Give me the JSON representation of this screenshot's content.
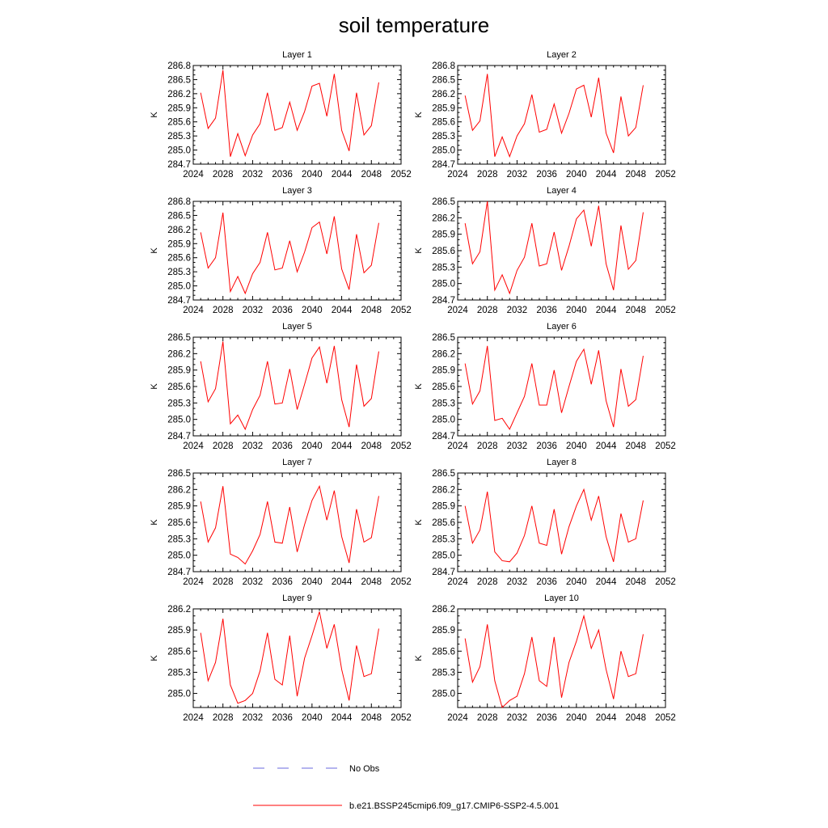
{
  "title": "soil temperature",
  "legend": {
    "placement": "bottom-center",
    "entries": [
      {
        "label": "No Obs",
        "color": "#6a6adf",
        "style": "dashed"
      },
      {
        "label": "b.e21.BSSP245cmip6.f09_g17.CMIP6-SSP2-4.5.001",
        "color": "#ff0000",
        "style": "solid"
      }
    ]
  },
  "chart_data": [
    {
      "type": "line",
      "title": "Layer 1",
      "ylabel": "K",
      "xlim": [
        2024,
        2052
      ],
      "ylim": [
        284.7,
        286.8
      ],
      "xticks": [
        "2024",
        "2028",
        "2032",
        "2036",
        "2040",
        "2044",
        "2048",
        "2052"
      ],
      "yticks": [
        "284.7",
        "285.0",
        "285.3",
        "285.6",
        "285.9",
        "286.2",
        "286.5",
        "286.8"
      ],
      "x": [
        2025,
        2026,
        2027,
        2028,
        2029,
        2030,
        2031,
        2032,
        2033,
        2034,
        2035,
        2036,
        2037,
        2038,
        2039,
        2040,
        2041,
        2042,
        2043,
        2044,
        2045,
        2046,
        2047,
        2048,
        2049
      ],
      "series": [
        {
          "name": "b.e21.BSSP245cmip6.f09_g17.CMIP6-SSP2-4.5.001",
          "color": "#ff0000",
          "values": [
            286.22,
            285.46,
            285.68,
            286.7,
            284.86,
            285.35,
            284.88,
            285.32,
            285.56,
            286.22,
            285.42,
            285.48,
            286.02,
            285.42,
            285.82,
            286.36,
            286.42,
            285.72,
            286.62,
            285.42,
            284.98,
            286.22,
            285.32,
            285.52,
            286.44
          ]
        }
      ]
    },
    {
      "type": "line",
      "title": "Layer 2",
      "ylabel": "K",
      "xlim": [
        2024,
        2052
      ],
      "ylim": [
        284.7,
        286.8
      ],
      "xticks": [
        "2024",
        "2028",
        "2032",
        "2036",
        "2040",
        "2044",
        "2048",
        "2052"
      ],
      "yticks": [
        "284.7",
        "285.0",
        "285.3",
        "285.6",
        "285.9",
        "286.2",
        "286.5",
        "286.8"
      ],
      "x": [
        2025,
        2026,
        2027,
        2028,
        2029,
        2030,
        2031,
        2032,
        2033,
        2034,
        2035,
        2036,
        2037,
        2038,
        2039,
        2040,
        2041,
        2042,
        2043,
        2044,
        2045,
        2046,
        2047,
        2048,
        2049
      ],
      "series": [
        {
          "name": "b.e21.BSSP245cmip6.f09_g17.CMIP6-SSP2-4.5.001",
          "color": "#ff0000",
          "values": [
            286.16,
            285.42,
            285.62,
            286.62,
            284.86,
            285.28,
            284.86,
            285.3,
            285.56,
            286.18,
            285.38,
            285.44,
            285.98,
            285.36,
            285.78,
            286.3,
            286.38,
            285.7,
            286.54,
            285.36,
            284.94,
            286.14,
            285.3,
            285.48,
            286.38
          ]
        }
      ]
    },
    {
      "type": "line",
      "title": "Layer 3",
      "ylabel": "K",
      "xlim": [
        2024,
        2052
      ],
      "ylim": [
        284.7,
        286.8
      ],
      "xticks": [
        "2024",
        "2028",
        "2032",
        "2036",
        "2040",
        "2044",
        "2048",
        "2052"
      ],
      "yticks": [
        "284.7",
        "285.0",
        "285.3",
        "285.6",
        "285.9",
        "286.2",
        "286.5",
        "286.8"
      ],
      "x": [
        2025,
        2026,
        2027,
        2028,
        2029,
        2030,
        2031,
        2032,
        2033,
        2034,
        2035,
        2036,
        2037,
        2038,
        2039,
        2040,
        2041,
        2042,
        2043,
        2044,
        2045,
        2046,
        2047,
        2048,
        2049
      ],
      "series": [
        {
          "name": "b.e21.BSSP245cmip6.f09_g17.CMIP6-SSP2-4.5.001",
          "color": "#ff0000",
          "values": [
            286.14,
            285.38,
            285.6,
            286.56,
            284.88,
            285.2,
            284.84,
            285.26,
            285.5,
            286.14,
            285.34,
            285.38,
            285.96,
            285.3,
            285.72,
            286.24,
            286.36,
            285.68,
            286.48,
            285.36,
            284.92,
            286.1,
            285.28,
            285.44,
            286.34
          ]
        }
      ]
    },
    {
      "type": "line",
      "title": "Layer 4",
      "ylabel": "K",
      "xlim": [
        2024,
        2052
      ],
      "ylim": [
        284.7,
        286.5
      ],
      "xticks": [
        "2024",
        "2028",
        "2032",
        "2036",
        "2040",
        "2044",
        "2048",
        "2052"
      ],
      "yticks": [
        "284.7",
        "285.0",
        "285.3",
        "285.6",
        "285.9",
        "286.2",
        "286.5"
      ],
      "x": [
        2025,
        2026,
        2027,
        2028,
        2029,
        2030,
        2031,
        2032,
        2033,
        2034,
        2035,
        2036,
        2037,
        2038,
        2039,
        2040,
        2041,
        2042,
        2043,
        2044,
        2045,
        2046,
        2047,
        2048,
        2049
      ],
      "series": [
        {
          "name": "b.e21.BSSP245cmip6.f09_g17.CMIP6-SSP2-4.5.001",
          "color": "#ff0000",
          "values": [
            286.1,
            285.36,
            285.58,
            286.5,
            284.88,
            285.16,
            284.82,
            285.24,
            285.48,
            286.1,
            285.32,
            285.36,
            285.94,
            285.24,
            285.68,
            286.18,
            286.34,
            285.68,
            286.42,
            285.36,
            284.88,
            286.06,
            285.26,
            285.42,
            286.3
          ]
        }
      ]
    },
    {
      "type": "line",
      "title": "Layer 5",
      "ylabel": "K",
      "xlim": [
        2024,
        2052
      ],
      "ylim": [
        284.7,
        286.5
      ],
      "xticks": [
        "2024",
        "2028",
        "2032",
        "2036",
        "2040",
        "2044",
        "2048",
        "2052"
      ],
      "yticks": [
        "284.7",
        "285.0",
        "285.3",
        "285.6",
        "285.9",
        "286.2",
        "286.5"
      ],
      "x": [
        2025,
        2026,
        2027,
        2028,
        2029,
        2030,
        2031,
        2032,
        2033,
        2034,
        2035,
        2036,
        2037,
        2038,
        2039,
        2040,
        2041,
        2042,
        2043,
        2044,
        2045,
        2046,
        2047,
        2048,
        2049
      ],
      "series": [
        {
          "name": "b.e21.BSSP245cmip6.f09_g17.CMIP6-SSP2-4.5.001",
          "color": "#ff0000",
          "values": [
            286.06,
            285.32,
            285.56,
            286.42,
            284.92,
            285.08,
            284.82,
            285.18,
            285.44,
            286.06,
            285.28,
            285.3,
            285.92,
            285.18,
            285.64,
            286.12,
            286.32,
            285.66,
            286.34,
            285.36,
            284.86,
            286.0,
            285.24,
            285.38,
            286.24
          ]
        }
      ]
    },
    {
      "type": "line",
      "title": "Layer 6",
      "ylabel": "K",
      "xlim": [
        2024,
        2052
      ],
      "ylim": [
        284.7,
        286.5
      ],
      "xticks": [
        "2024",
        "2028",
        "2032",
        "2036",
        "2040",
        "2044",
        "2048",
        "2052"
      ],
      "yticks": [
        "284.7",
        "285.0",
        "285.3",
        "285.6",
        "285.9",
        "286.2",
        "286.5"
      ],
      "x": [
        2025,
        2026,
        2027,
        2028,
        2029,
        2030,
        2031,
        2032,
        2033,
        2034,
        2035,
        2036,
        2037,
        2038,
        2039,
        2040,
        2041,
        2042,
        2043,
        2044,
        2045,
        2046,
        2047,
        2048,
        2049
      ],
      "series": [
        {
          "name": "b.e21.BSSP245cmip6.f09_g17.CMIP6-SSP2-4.5.001",
          "color": "#ff0000",
          "values": [
            286.02,
            285.28,
            285.52,
            286.34,
            284.98,
            285.02,
            284.82,
            285.12,
            285.42,
            286.02,
            285.26,
            285.26,
            285.9,
            285.12,
            285.6,
            286.06,
            286.28,
            285.64,
            286.26,
            285.34,
            284.86,
            285.92,
            285.24,
            285.36,
            286.16
          ]
        }
      ]
    },
    {
      "type": "line",
      "title": "Layer 7",
      "ylabel": "K",
      "xlim": [
        2024,
        2052
      ],
      "ylim": [
        284.7,
        286.5
      ],
      "xticks": [
        "2024",
        "2028",
        "2032",
        "2036",
        "2040",
        "2044",
        "2048",
        "2052"
      ],
      "yticks": [
        "284.7",
        "285.0",
        "285.3",
        "285.6",
        "285.9",
        "286.2",
        "286.5"
      ],
      "x": [
        2025,
        2026,
        2027,
        2028,
        2029,
        2030,
        2031,
        2032,
        2033,
        2034,
        2035,
        2036,
        2037,
        2038,
        2039,
        2040,
        2041,
        2042,
        2043,
        2044,
        2045,
        2046,
        2047,
        2048,
        2049
      ],
      "series": [
        {
          "name": "b.e21.BSSP245cmip6.f09_g17.CMIP6-SSP2-4.5.001",
          "color": "#ff0000",
          "values": [
            285.98,
            285.24,
            285.5,
            286.26,
            285.02,
            284.96,
            284.84,
            285.08,
            285.38,
            285.98,
            285.24,
            285.22,
            285.88,
            285.06,
            285.56,
            286.0,
            286.26,
            285.64,
            286.18,
            285.34,
            284.86,
            285.84,
            285.24,
            285.32,
            286.08
          ]
        }
      ]
    },
    {
      "type": "line",
      "title": "Layer 8",
      "ylabel": "K",
      "xlim": [
        2024,
        2052
      ],
      "ylim": [
        284.7,
        286.5
      ],
      "xticks": [
        "2024",
        "2028",
        "2032",
        "2036",
        "2040",
        "2044",
        "2048",
        "2052"
      ],
      "yticks": [
        "284.7",
        "285.0",
        "285.3",
        "285.6",
        "285.9",
        "286.2",
        "286.5"
      ],
      "x": [
        2025,
        2026,
        2027,
        2028,
        2029,
        2030,
        2031,
        2032,
        2033,
        2034,
        2035,
        2036,
        2037,
        2038,
        2039,
        2040,
        2041,
        2042,
        2043,
        2044,
        2045,
        2046,
        2047,
        2048,
        2049
      ],
      "series": [
        {
          "name": "b.e21.BSSP245cmip6.f09_g17.CMIP6-SSP2-4.5.001",
          "color": "#ff0000",
          "values": [
            285.9,
            285.22,
            285.46,
            286.16,
            285.06,
            284.9,
            284.88,
            285.04,
            285.36,
            285.9,
            285.22,
            285.18,
            285.84,
            285.02,
            285.52,
            285.9,
            286.2,
            285.64,
            286.08,
            285.34,
            284.88,
            285.76,
            285.24,
            285.3,
            286.0
          ]
        }
      ]
    },
    {
      "type": "line",
      "title": "Layer 9",
      "ylabel": "K",
      "xlim": [
        2024,
        2052
      ],
      "ylim": [
        284.8,
        286.2
      ],
      "xticks": [
        "2024",
        "2028",
        "2032",
        "2036",
        "2040",
        "2044",
        "2048",
        "2052"
      ],
      "yticks": [
        "285.0",
        "285.3",
        "285.6",
        "285.9",
        "286.2"
      ],
      "x": [
        2025,
        2026,
        2027,
        2028,
        2029,
        2030,
        2031,
        2032,
        2033,
        2034,
        2035,
        2036,
        2037,
        2038,
        2039,
        2040,
        2041,
        2042,
        2043,
        2044,
        2045,
        2046,
        2047,
        2048,
        2049
      ],
      "series": [
        {
          "name": "b.e21.BSSP245cmip6.f09_g17.CMIP6-SSP2-4.5.001",
          "color": "#ff0000",
          "values": [
            285.86,
            285.18,
            285.44,
            286.06,
            285.12,
            284.86,
            284.9,
            285.0,
            285.32,
            285.86,
            285.2,
            285.12,
            285.82,
            284.96,
            285.5,
            285.82,
            286.16,
            285.64,
            285.98,
            285.34,
            284.9,
            285.68,
            285.24,
            285.28,
            285.92
          ]
        }
      ]
    },
    {
      "type": "line",
      "title": "Layer 10",
      "ylabel": "K",
      "xlim": [
        2024,
        2052
      ],
      "ylim": [
        284.8,
        286.2
      ],
      "xticks": [
        "2024",
        "2028",
        "2032",
        "2036",
        "2040",
        "2044",
        "2048",
        "2052"
      ],
      "yticks": [
        "285.0",
        "285.3",
        "285.6",
        "285.9",
        "286.2"
      ],
      "x": [
        2025,
        2026,
        2027,
        2028,
        2029,
        2030,
        2031,
        2032,
        2033,
        2034,
        2035,
        2036,
        2037,
        2038,
        2039,
        2040,
        2041,
        2042,
        2043,
        2044,
        2045,
        2046,
        2047,
        2048,
        2049
      ],
      "series": [
        {
          "name": "b.e21.BSSP245cmip6.f09_g17.CMIP6-SSP2-4.5.001",
          "color": "#ff0000",
          "values": [
            285.78,
            285.16,
            285.38,
            285.98,
            285.18,
            284.8,
            284.9,
            284.96,
            285.28,
            285.8,
            285.18,
            285.1,
            285.8,
            284.94,
            285.44,
            285.74,
            286.1,
            285.64,
            285.9,
            285.34,
            284.92,
            285.6,
            285.24,
            285.28,
            285.84
          ]
        }
      ]
    }
  ]
}
